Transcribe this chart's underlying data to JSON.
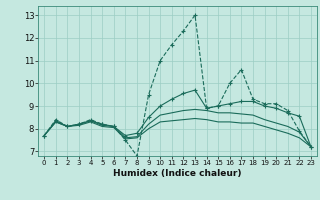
{
  "title": "",
  "xlabel": "Humidex (Indice chaleur)",
  "ylabel": "",
  "xlim": [
    -0.5,
    23.5
  ],
  "ylim": [
    6.8,
    13.4
  ],
  "yticks": [
    7,
    8,
    9,
    10,
    11,
    12,
    13
  ],
  "xticks": [
    0,
    1,
    2,
    3,
    4,
    5,
    6,
    7,
    8,
    9,
    10,
    11,
    12,
    13,
    14,
    15,
    16,
    17,
    18,
    19,
    20,
    21,
    22,
    23
  ],
  "bg_color": "#c5e8e0",
  "grid_color": "#9ccec4",
  "line_color": "#1a6b5a",
  "lines": [
    {
      "x": [
        0,
        1,
        2,
        3,
        4,
        5,
        6,
        7,
        8,
        9,
        10,
        11,
        12,
        13,
        14,
        15,
        16,
        17,
        18,
        19,
        20,
        21,
        22,
        23
      ],
      "y": [
        7.7,
        8.4,
        8.1,
        8.2,
        8.4,
        8.2,
        8.1,
        7.5,
        6.8,
        9.5,
        11.0,
        11.7,
        12.3,
        13.0,
        8.9,
        9.0,
        10.0,
        10.6,
        9.3,
        9.1,
        9.1,
        8.8,
        7.9,
        7.2
      ],
      "marker": "+",
      "linestyle": "--"
    },
    {
      "x": [
        0,
        1,
        2,
        3,
        4,
        5,
        6,
        7,
        8,
        9,
        10,
        11,
        12,
        13,
        14,
        15,
        16,
        17,
        18,
        19,
        20,
        21,
        22,
        23
      ],
      "y": [
        7.7,
        8.35,
        8.1,
        8.2,
        8.35,
        8.2,
        8.1,
        7.7,
        7.8,
        8.5,
        9.0,
        9.3,
        9.55,
        9.7,
        8.9,
        9.0,
        9.1,
        9.2,
        9.2,
        9.0,
        8.9,
        8.7,
        8.55,
        7.2
      ],
      "marker": "+",
      "linestyle": "-"
    },
    {
      "x": [
        0,
        1,
        2,
        3,
        4,
        5,
        6,
        7,
        8,
        9,
        10,
        11,
        12,
        13,
        14,
        15,
        16,
        17,
        18,
        19,
        20,
        21,
        22,
        23
      ],
      "y": [
        7.7,
        8.3,
        8.1,
        8.2,
        8.35,
        8.15,
        8.1,
        7.6,
        7.65,
        8.2,
        8.6,
        8.7,
        8.8,
        8.85,
        8.8,
        8.7,
        8.7,
        8.65,
        8.6,
        8.4,
        8.25,
        8.1,
        7.85,
        7.2
      ],
      "marker": null,
      "linestyle": "-"
    },
    {
      "x": [
        0,
        1,
        2,
        3,
        4,
        5,
        6,
        7,
        8,
        9,
        10,
        11,
        12,
        13,
        14,
        15,
        16,
        17,
        18,
        19,
        20,
        21,
        22,
        23
      ],
      "y": [
        7.7,
        8.3,
        8.1,
        8.15,
        8.3,
        8.1,
        8.05,
        7.55,
        7.6,
        8.0,
        8.3,
        8.35,
        8.4,
        8.45,
        8.4,
        8.3,
        8.3,
        8.25,
        8.25,
        8.1,
        7.95,
        7.8,
        7.6,
        7.2
      ],
      "marker": null,
      "linestyle": "-"
    }
  ]
}
